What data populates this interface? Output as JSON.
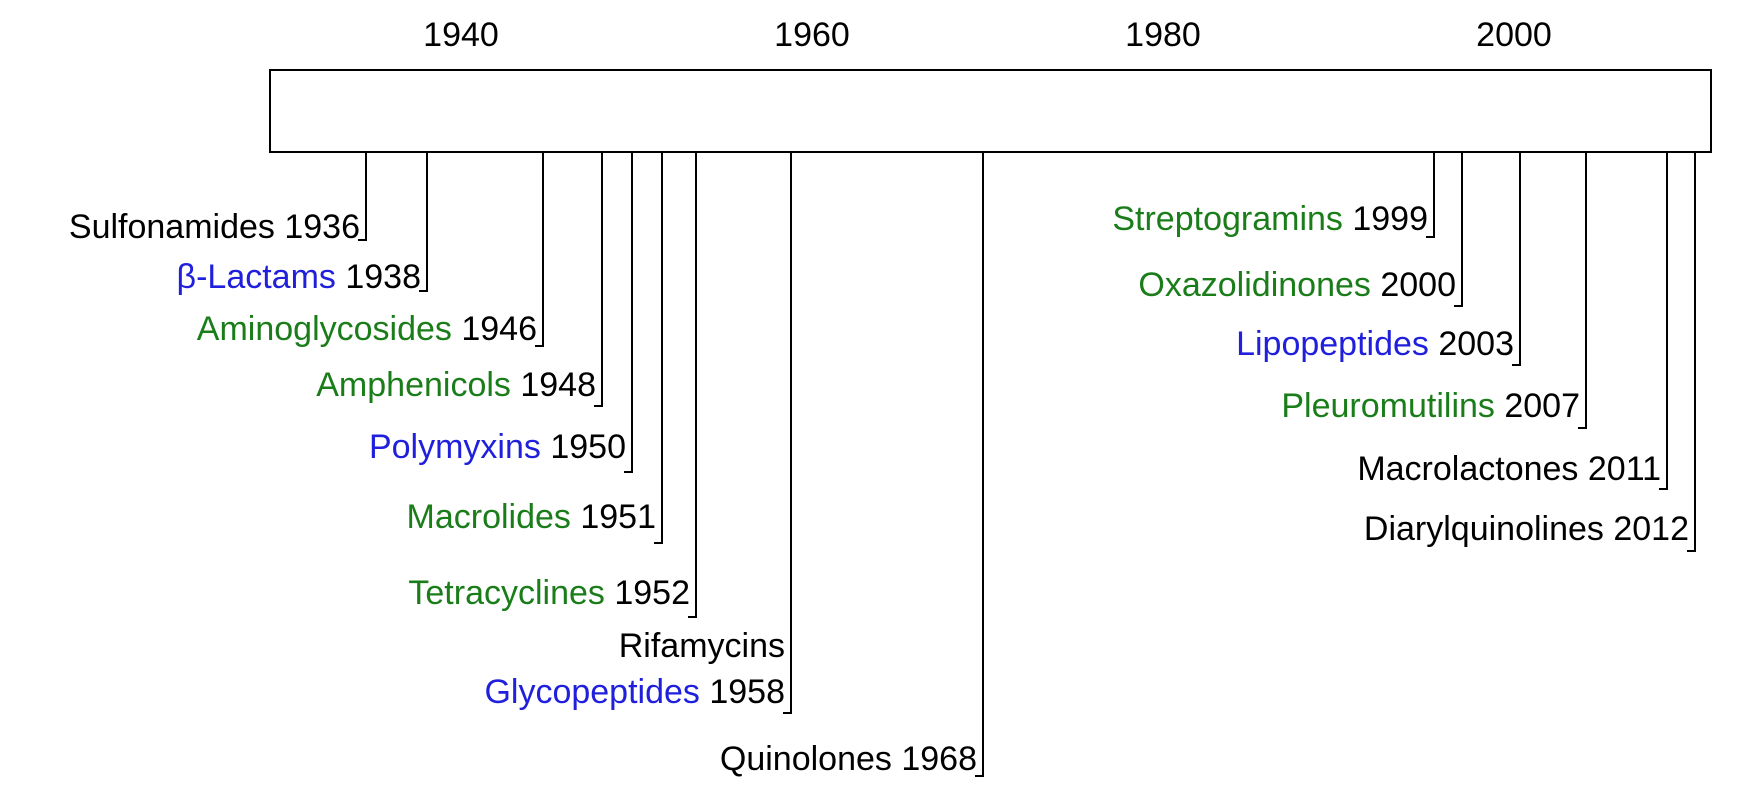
{
  "colors": {
    "black": "#000000",
    "green": "#1a7d1a",
    "blue": "#1f1fdc"
  },
  "axis": {
    "years": [
      "1940",
      "1960",
      "1980",
      "2000"
    ]
  },
  "entries": [
    {
      "name": "Sulfonamides",
      "year": "1936",
      "year_value": 1936,
      "color": "black"
    },
    {
      "name": "β-Lactams",
      "year": "1938",
      "year_value": 1938,
      "color": "blue"
    },
    {
      "name": "Aminoglycosides",
      "year": "1946",
      "year_value": 1946,
      "color": "green"
    },
    {
      "name": "Amphenicols",
      "year": "1948",
      "year_value": 1948,
      "color": "green"
    },
    {
      "name": "Polymyxins",
      "year": "1950",
      "year_value": 1950,
      "color": "blue"
    },
    {
      "name": "Macrolides",
      "year": "1951",
      "year_value": 1951,
      "color": "green"
    },
    {
      "name": "Tetracyclines",
      "year": "1952",
      "year_value": 1952,
      "color": "green"
    },
    {
      "name": "Rifamycins",
      "year": "",
      "year_value": 1958,
      "color": "black"
    },
    {
      "name": "Glycopeptides",
      "year": "1958",
      "year_value": 1958,
      "color": "blue"
    },
    {
      "name": "Quinolones",
      "year": "1968",
      "year_value": 1968,
      "color": "black"
    },
    {
      "name": "Streptogramins",
      "year": "1999",
      "year_value": 1999,
      "color": "green"
    },
    {
      "name": "Oxazolidinones",
      "year": "2000",
      "year_value": 2000,
      "color": "green"
    },
    {
      "name": "Lipopeptides",
      "year": "2003",
      "year_value": 2003,
      "color": "blue"
    },
    {
      "name": "Pleuromutilins",
      "year": "2007",
      "year_value": 2007,
      "color": "green"
    },
    {
      "name": "Macrolactones",
      "year": "2011",
      "year_value": 2011,
      "color": "black"
    },
    {
      "name": "Diarylquinolines",
      "year": "2012",
      "year_value": 2012,
      "color": "black"
    }
  ]
}
